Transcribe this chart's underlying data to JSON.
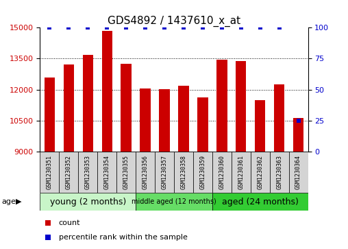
{
  "title": "GDS4892 / 1437610_x_at",
  "samples": [
    "GSM1230351",
    "GSM1230352",
    "GSM1230353",
    "GSM1230354",
    "GSM1230355",
    "GSM1230356",
    "GSM1230357",
    "GSM1230358",
    "GSM1230359",
    "GSM1230360",
    "GSM1230361",
    "GSM1230362",
    "GSM1230363",
    "GSM1230364"
  ],
  "counts": [
    12580,
    13200,
    13680,
    14820,
    13250,
    12050,
    12030,
    12200,
    11620,
    13430,
    13380,
    11480,
    12270,
    10620
  ],
  "percentile_ranks": [
    100,
    100,
    100,
    100,
    100,
    100,
    100,
    100,
    100,
    100,
    100,
    100,
    100,
    25
  ],
  "ylim_left": [
    9000,
    15000
  ],
  "ylim_right": [
    0,
    100
  ],
  "yticks_left": [
    9000,
    10500,
    12000,
    13500,
    15000
  ],
  "yticks_right": [
    0,
    25,
    50,
    75,
    100
  ],
  "bar_color": "#cc0000",
  "dot_color": "#0000cc",
  "sample_box_color": "#d4d4d4",
  "groups": [
    {
      "label": "young (2 months)",
      "start": 0,
      "end": 5,
      "color": "#c8f5c8"
    },
    {
      "label": "middle aged (12 months)",
      "start": 5,
      "end": 9,
      "color": "#66dd66"
    },
    {
      "label": "aged (24 months)",
      "start": 9,
      "end": 14,
      "color": "#33cc33"
    }
  ],
  "age_label": "age",
  "legend_count_label": "count",
  "legend_pct_label": "percentile rank within the sample",
  "title_fontsize": 11,
  "tick_fontsize": 8,
  "sample_fontsize": 6,
  "group_fontsize_large": 9,
  "group_fontsize_small": 7,
  "legend_fontsize": 8
}
